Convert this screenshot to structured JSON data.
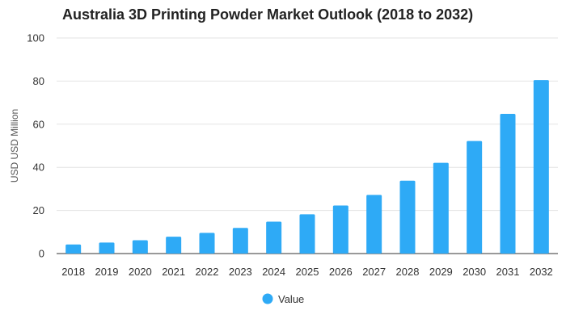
{
  "chart_data": {
    "type": "bar",
    "title": "Australia 3D Printing Powder Market Outlook (2018 to 2032)",
    "xlabel": "",
    "ylabel": "USD USD Million",
    "ylim": [
      0,
      100
    ],
    "yticks": [
      0,
      20,
      40,
      60,
      80,
      100
    ],
    "grid": true,
    "legend_position": "bottom",
    "categories": [
      "2018",
      "2019",
      "2020",
      "2021",
      "2022",
      "2023",
      "2024",
      "2025",
      "2026",
      "2027",
      "2028",
      "2029",
      "2030",
      "2031",
      "2032"
    ],
    "series": [
      {
        "name": "Value",
        "color": "#2eaaf6",
        "values": [
          4.2,
          5.1,
          6.2,
          7.8,
          9.6,
          11.9,
          14.8,
          18.2,
          22.3,
          27.2,
          33.8,
          42.1,
          52.2,
          64.8,
          80.5
        ]
      }
    ]
  }
}
